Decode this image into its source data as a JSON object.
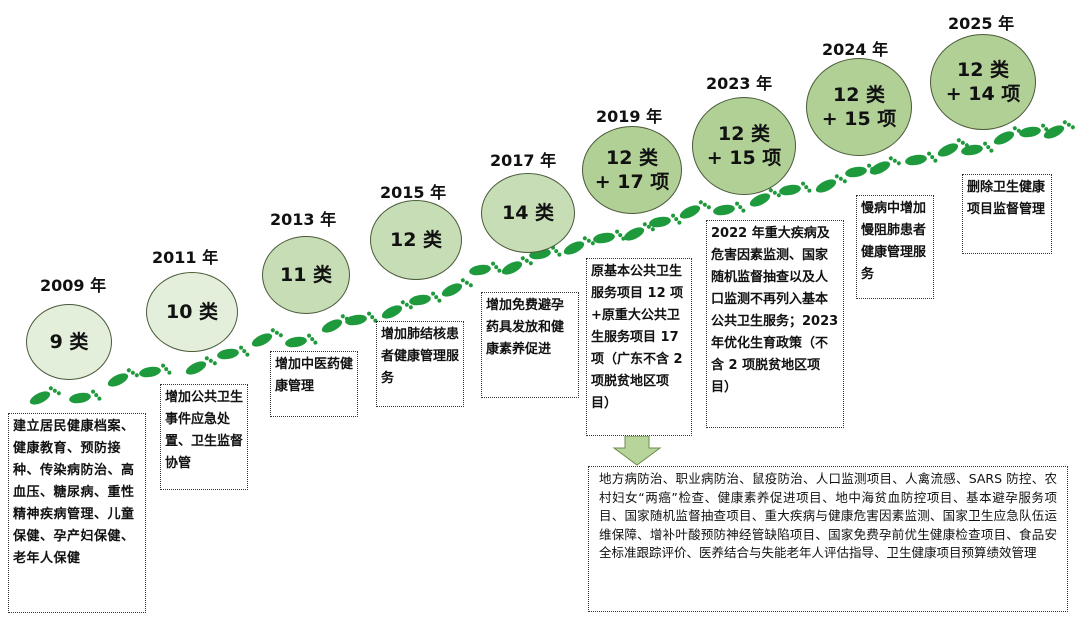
{
  "milestones": [
    {
      "year": "2009 年",
      "count": "9 类",
      "desc": "建立居民健康档案、健康教育、预防接种、传染病防治、高血压、糖尿病、重性精神疾病管理、儿童保健、孕产妇保健、老年人保健"
    },
    {
      "year": "2011 年",
      "count": "10 类",
      "desc": "增加公共卫生事件应急处置、卫生监督协管"
    },
    {
      "year": "2013 年",
      "count": "11 类",
      "desc": "增加中医药健康管理"
    },
    {
      "year": "2015 年",
      "count": "12 类",
      "desc": "增加肺结核患者健康管理服务"
    },
    {
      "year": "2017 年",
      "count": "14 类",
      "desc": "增加免费避孕药具发放和健康素养促进"
    },
    {
      "year": "2019 年",
      "count": "12 类\n+ 17 项",
      "desc": "原基本公共卫生服务项目 12 项+原重大公共卫生服务项目 17 项（广东不含 2 项脱贫地区项目）"
    },
    {
      "year": "2023 年",
      "count": "12 类\n+ 15 项",
      "desc": "2022 年重大疾病及危害因素监测、国家随机监督抽查以及人口监测不再列入基本公共卫生服务；2023年优化生育政策（不含 2 项脱贫地区项目）"
    },
    {
      "year": "2024 年",
      "count": "12 类\n+ 15 项",
      "desc": "慢病中增加慢阻肺患者健康管理服务"
    },
    {
      "year": "2025 年",
      "count": "12 类\n+ 14 项",
      "desc": "删除卫生健康项目监督管理"
    }
  ],
  "detail_list": "地方病防治、职业病防治、鼠疫防治、人口监测项目、人禽流感、SARS 防控、农村妇女“两癌”检查、健康素养促进项目、地中海贫血防控项目、基本避孕服务项目、国家随机监督抽查项目、重大疾病与健康危害因素监测、国家卫生应急队伍运维保障、增补叶酸预防神经管缺陷项目、国家免费孕前优生健康检查项目、食品安全标准跟踪评价、医养结合与失能老年人评估指导、卫生健康项目预算绩效管理",
  "colors": {
    "footprint": "#1e9a3c",
    "circle_light": "#e3efdb",
    "circle_mid": "#c7ddb5",
    "circle_dark": "#b1d096",
    "arrow": "#b7d59a"
  }
}
